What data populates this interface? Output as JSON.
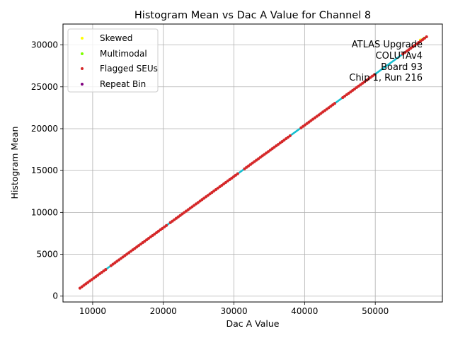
{
  "chart_data": {
    "type": "scatter",
    "title": "Histogram Mean vs Dac A Value for Channel 8",
    "xlabel": "Dac A Value",
    "ylabel": "Histogram Mean",
    "xlim": [
      5800,
      59500
    ],
    "ylim": [
      -700,
      32500
    ],
    "xticks": [
      10000,
      20000,
      30000,
      40000,
      50000
    ],
    "yticks": [
      0,
      5000,
      10000,
      15000,
      20000,
      25000,
      30000
    ],
    "grid": true,
    "legend_position": "upper-left",
    "line": {
      "x_start": 8200,
      "y_start": 950,
      "x_end": 57300,
      "y_end": 31000,
      "color": "#17becf"
    },
    "series": [
      {
        "name": "Skewed",
        "color": "#ffff00",
        "points": [
          [
            56400,
            30600
          ]
        ]
      },
      {
        "name": "Multimodal",
        "color": "#7fff00",
        "points": [
          [
            56900,
            30800
          ]
        ]
      },
      {
        "name": "Flagged SEUs",
        "color": "#d62728",
        "x_ranges": [
          [
            8200,
            12000
          ],
          [
            12600,
            20700
          ],
          [
            21000,
            30600
          ],
          [
            31500,
            38200
          ],
          [
            39500,
            44500
          ],
          [
            45400,
            50000
          ],
          [
            53900,
            57300
          ]
        ],
        "step": 280
      },
      {
        "name": "Repeat Bin",
        "color": "#800080",
        "points": []
      }
    ],
    "annotation": [
      "ATLAS Upgrade",
      "COLUTAv4",
      "Board 93",
      "Chip 1, Run 216"
    ]
  }
}
